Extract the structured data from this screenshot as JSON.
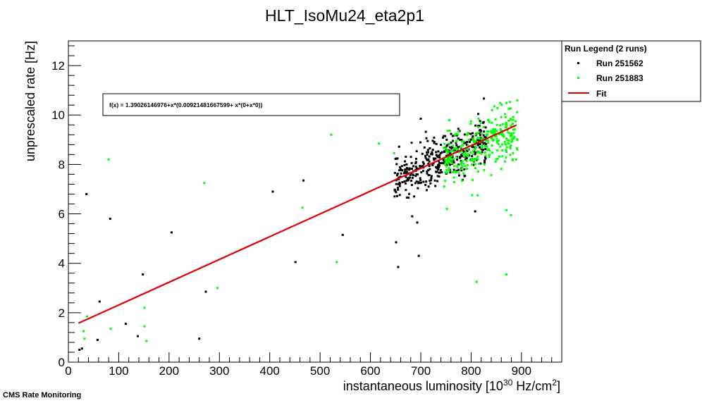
{
  "footer_label": "CMS Rate Monitoring",
  "colors": {
    "series_1": "#000000",
    "series_2": "#00ff00",
    "fit": "#dd0000"
  },
  "chart_data": {
    "type": "scatter",
    "title": "HLT_IsoMu24_eta2p1",
    "xlabel": "instantaneous luminosity [10",
    "xlabel_sup1": "30",
    "xlabel_mid": " Hz/cm",
    "xlabel_sup2": "2",
    "xlabel_end": "]",
    "ylabel": "unprescaled rate [Hz]",
    "xlim": [
      0,
      980
    ],
    "ylim": [
      0,
      13
    ],
    "xticks": [
      0,
      100,
      200,
      300,
      400,
      500,
      600,
      700,
      800,
      900
    ],
    "yticks": [
      0,
      2,
      4,
      6,
      8,
      10,
      12
    ],
    "fit_formula": "f(x) = 1.39026146976+x*(0.00921481667599+ x*(0+x*0))",
    "fit": {
      "intercept": 1.39026146976,
      "slope": 0.00921481667599,
      "x_range": [
        20,
        890
      ]
    },
    "legend": {
      "title": "Run Legend (2 runs)",
      "entries": [
        "Run 251562",
        "Run 251883",
        "Fit"
      ]
    },
    "series": [
      {
        "name": "Run 251562",
        "color": "#000000",
        "points": [
          [
            22,
            0.5
          ],
          [
            27,
            0.55
          ],
          [
            36,
            6.8
          ],
          [
            58,
            0.9
          ],
          [
            62,
            2.45
          ],
          [
            83,
            5.8
          ],
          [
            114,
            1.55
          ],
          [
            138,
            1.05
          ],
          [
            148,
            3.55
          ],
          [
            205,
            5.25
          ],
          [
            260,
            0.95
          ],
          [
            273,
            2.85
          ],
          [
            406,
            6.9
          ],
          [
            451,
            4.05
          ],
          [
            467,
            7.35
          ],
          [
            545,
            5.15
          ],
          [
            651,
            4.85
          ],
          [
            655,
            3.85
          ],
          [
            696,
            4.3
          ],
          [
            683,
            5.9
          ],
          [
            693,
            5.65
          ],
          [
            808,
            6.1
          ],
          [
            700,
            9.85
          ]
        ],
        "cluster": {
          "x_range": [
            648,
            830
          ],
          "y_mid": [
            7.35,
            9.0
          ],
          "y_spread": 0.65,
          "count": 380,
          "seed": 7
        }
      },
      {
        "name": "Run 251883",
        "color": "#00ff00",
        "points": [
          [
            30,
            1.25
          ],
          [
            32,
            0.95
          ],
          [
            37,
            1.85
          ],
          [
            80,
            8.2
          ],
          [
            84,
            1.35
          ],
          [
            151,
            2.2
          ],
          [
            151,
            1.45
          ],
          [
            155,
            0.85
          ],
          [
            270,
            7.25
          ],
          [
            296,
            3.0
          ],
          [
            465,
            6.25
          ],
          [
            522,
            9.2
          ],
          [
            533,
            4.05
          ],
          [
            617,
            8.85
          ],
          [
            647,
            8.45
          ],
          [
            752,
            6.2
          ],
          [
            811,
            3.25
          ],
          [
            813,
            6.75
          ],
          [
            870,
            6.15
          ],
          [
            879,
            5.95
          ],
          [
            870,
            3.55
          ]
        ],
        "cluster": {
          "x_range": [
            745,
            892
          ],
          "y_mid": [
            8.2,
            9.4
          ],
          "y_spread": 0.75,
          "count": 310,
          "seed": 23
        }
      }
    ],
    "grid": false,
    "legend_placement": "top-right-outside"
  }
}
